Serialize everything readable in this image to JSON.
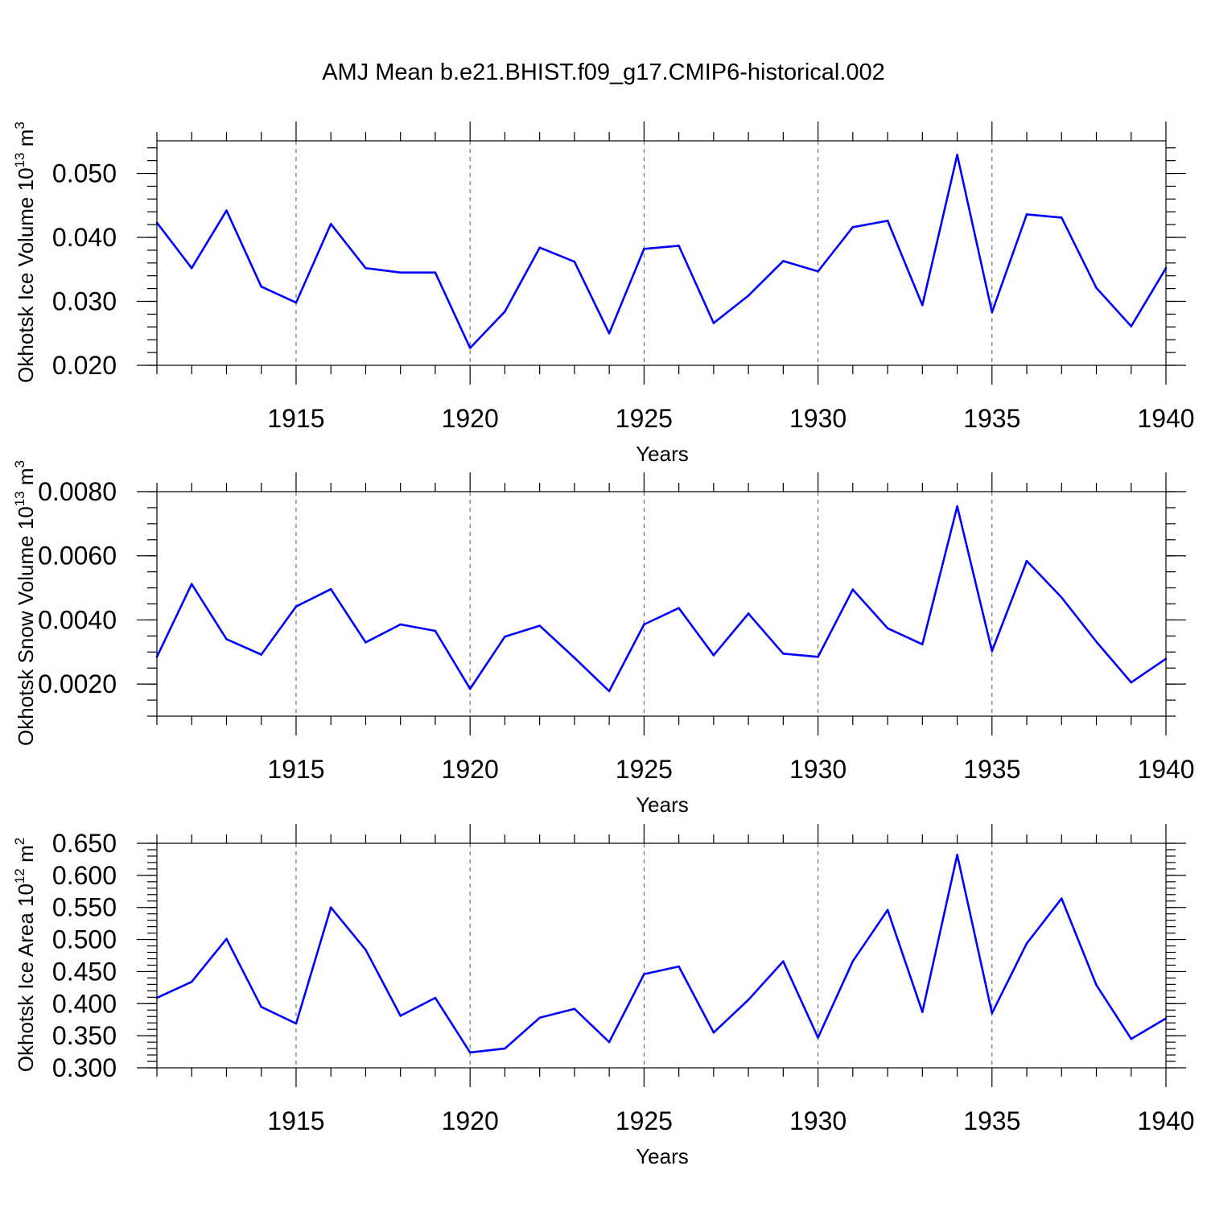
{
  "figure_title": "AMJ Mean b.e21.BHIST.f09_g17.CMIP6-historical.002",
  "chart_data": [
    {
      "type": "line",
      "title": "AMJ Mean b.e21.BHIST.f09_g17.CMIP6-historical.002",
      "xlabel": "Years",
      "ylabel": {
        "text": "Okhotsk Ice Volume 10",
        "sup_exp": "13",
        "unit": " m",
        "sup_unit": "3"
      },
      "xlim": [
        1911,
        1940
      ],
      "ylim": [
        0.02,
        0.0551
      ],
      "x_ticks": [
        1915,
        1920,
        1925,
        1930,
        1935,
        1940
      ],
      "x_tick_labels": [
        "1915",
        "1920",
        "1925",
        "1930",
        "1935",
        "1940"
      ],
      "y_ticks": [
        0.02,
        0.03,
        0.04,
        0.05
      ],
      "y_tick_labels": [
        "0.020",
        "0.030",
        "0.040",
        "0.050"
      ],
      "y_minor_step": 0.002,
      "grid": "dashed vertical at major x ticks",
      "series": [
        {
          "name": "Okhotsk Ice Volume",
          "color": "#0000ff",
          "x": [
            1911,
            1912,
            1913,
            1914,
            1915,
            1916,
            1917,
            1918,
            1919,
            1920,
            1921,
            1922,
            1923,
            1924,
            1925,
            1926,
            1927,
            1928,
            1929,
            1930,
            1931,
            1932,
            1933,
            1934,
            1935,
            1936,
            1937,
            1938,
            1939,
            1940
          ],
          "values": [
            0.0423,
            0.0352,
            0.0442,
            0.0323,
            0.0298,
            0.0421,
            0.0352,
            0.0345,
            0.0345,
            0.0227,
            0.0284,
            0.0384,
            0.0362,
            0.025,
            0.0382,
            0.0387,
            0.0266,
            0.0309,
            0.0363,
            0.0347,
            0.0416,
            0.0426,
            0.0294,
            0.0529,
            0.0283,
            0.0436,
            0.0431,
            0.0321,
            0.0261,
            0.0352
          ]
        }
      ]
    },
    {
      "type": "line",
      "xlabel": "Years",
      "ylabel": {
        "text": "Okhotsk Snow Volume 10",
        "sup_exp": "13",
        "unit": " m",
        "sup_unit": "3"
      },
      "xlim": [
        1911,
        1940
      ],
      "ylim": [
        0.001,
        0.008
      ],
      "x_ticks": [
        1915,
        1920,
        1925,
        1930,
        1935,
        1940
      ],
      "x_tick_labels": [
        "1915",
        "1920",
        "1925",
        "1930",
        "1935",
        "1940"
      ],
      "y_ticks": [
        0.002,
        0.004,
        0.006,
        0.008
      ],
      "y_tick_labels": [
        "0.0020",
        "0.0040",
        "0.0060",
        "0.0080"
      ],
      "y_minor_step": 0.0005,
      "grid": "dashed vertical at major x ticks",
      "series": [
        {
          "name": "Okhotsk Snow Volume",
          "color": "#0000ff",
          "x": [
            1911,
            1912,
            1913,
            1914,
            1915,
            1916,
            1917,
            1918,
            1919,
            1920,
            1921,
            1922,
            1923,
            1924,
            1925,
            1926,
            1927,
            1928,
            1929,
            1930,
            1931,
            1932,
            1933,
            1934,
            1935,
            1936,
            1937,
            1938,
            1939,
            1940
          ],
          "values": [
            0.00285,
            0.00512,
            0.0034,
            0.00292,
            0.00442,
            0.00496,
            0.0033,
            0.00386,
            0.00366,
            0.00185,
            0.00348,
            0.00382,
            0.00282,
            0.00178,
            0.00386,
            0.00437,
            0.0029,
            0.0042,
            0.00295,
            0.00285,
            0.00495,
            0.00374,
            0.00324,
            0.00754,
            0.00303,
            0.00584,
            0.0047,
            0.00332,
            0.00205,
            0.00279
          ]
        }
      ]
    },
    {
      "type": "line",
      "xlabel": "Years",
      "ylabel": {
        "text": "Okhotsk Ice Area 10",
        "sup_exp": "12",
        "unit": " m",
        "sup_unit": "2"
      },
      "xlim": [
        1911,
        1940
      ],
      "ylim": [
        0.3,
        0.65
      ],
      "x_ticks": [
        1915,
        1920,
        1925,
        1930,
        1935,
        1940
      ],
      "x_tick_labels": [
        "1915",
        "1920",
        "1925",
        "1930",
        "1935",
        "1940"
      ],
      "y_ticks": [
        0.3,
        0.35,
        0.4,
        0.45,
        0.5,
        0.55,
        0.6,
        0.65
      ],
      "y_tick_labels": [
        "0.300",
        "0.350",
        "0.400",
        "0.450",
        "0.500",
        "0.550",
        "0.600",
        "0.650"
      ],
      "y_minor_step": 0.01,
      "grid": "dashed vertical at major x ticks",
      "series": [
        {
          "name": "Okhotsk Ice Area",
          "color": "#0000ff",
          "x": [
            1911,
            1912,
            1913,
            1914,
            1915,
            1916,
            1917,
            1918,
            1919,
            1920,
            1921,
            1922,
            1923,
            1924,
            1925,
            1926,
            1927,
            1928,
            1929,
            1930,
            1931,
            1932,
            1933,
            1934,
            1935,
            1936,
            1937,
            1938,
            1939,
            1940
          ],
          "values": [
            0.409,
            0.434,
            0.501,
            0.395,
            0.369,
            0.55,
            0.484,
            0.381,
            0.409,
            0.324,
            0.33,
            0.378,
            0.392,
            0.34,
            0.446,
            0.458,
            0.355,
            0.406,
            0.466,
            0.347,
            0.466,
            0.546,
            0.387,
            0.632,
            0.385,
            0.494,
            0.564,
            0.429,
            0.345,
            0.377
          ]
        }
      ]
    }
  ]
}
